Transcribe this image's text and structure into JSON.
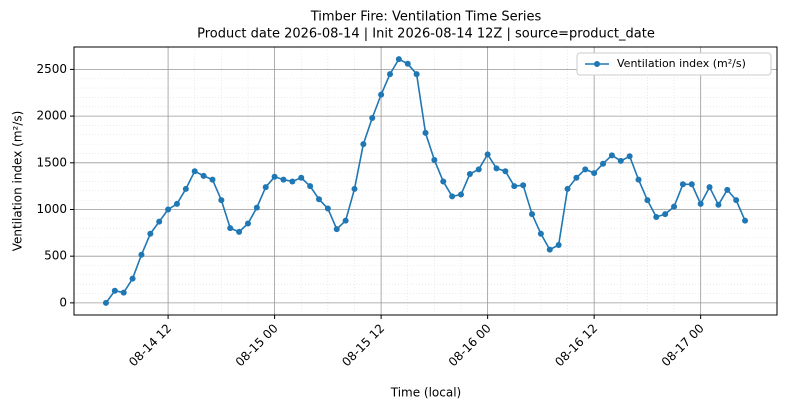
{
  "chart_data": {
    "type": "line",
    "title": "Timber Fire: Ventilation Time Series",
    "subtitle": "Product date 2026-08-14 | Init 2026-08-14 12Z | source=product_date",
    "x_label": "Time (local)",
    "y_label": "Ventilation index (m²/s)",
    "x": [
      "08-14 05",
      "08-14 06",
      "08-14 07",
      "08-14 08",
      "08-14 09",
      "08-14 10",
      "08-14 11",
      "08-14 12",
      "08-14 13",
      "08-14 14",
      "08-14 15",
      "08-14 16",
      "08-14 17",
      "08-14 18",
      "08-14 19",
      "08-14 20",
      "08-14 21",
      "08-14 22",
      "08-14 23",
      "08-15 00",
      "08-15 01",
      "08-15 02",
      "08-15 03",
      "08-15 04",
      "08-15 05",
      "08-15 06",
      "08-15 07",
      "08-15 08",
      "08-15 09",
      "08-15 10",
      "08-15 11",
      "08-15 12",
      "08-15 13",
      "08-15 14",
      "08-15 15",
      "08-15 16",
      "08-15 17",
      "08-15 18",
      "08-15 19",
      "08-15 20",
      "08-15 21",
      "08-15 22",
      "08-15 23",
      "08-16 00",
      "08-16 01",
      "08-16 02",
      "08-16 03",
      "08-16 04",
      "08-16 05",
      "08-16 06",
      "08-16 07",
      "08-16 08",
      "08-16 09",
      "08-16 10",
      "08-16 11",
      "08-16 12",
      "08-16 13",
      "08-16 14",
      "08-16 15",
      "08-16 16",
      "08-16 17",
      "08-16 18",
      "08-16 19",
      "08-16 20",
      "08-16 21",
      "08-16 22",
      "08-16 23",
      "08-17 00",
      "08-17 01",
      "08-17 02",
      "08-17 03",
      "08-17 04",
      "08-17 05"
    ],
    "series": [
      {
        "name": "Ventilation index (m²/s)",
        "color": "#1f77b4",
        "values": [
          0,
          130,
          110,
          260,
          515,
          740,
          870,
          1000,
          1060,
          1220,
          1410,
          1360,
          1320,
          1100,
          800,
          760,
          850,
          1020,
          1240,
          1350,
          1320,
          1300,
          1340,
          1250,
          1110,
          1010,
          790,
          880,
          1220,
          1700,
          1980,
          2230,
          2450,
          2610,
          2560,
          2450,
          1820,
          1530,
          1300,
          1140,
          1160,
          1380,
          1430,
          1590,
          1440,
          1410,
          1250,
          1260,
          950,
          740,
          570,
          620,
          1220,
          1340,
          1430,
          1390,
          1490,
          1580,
          1520,
          1570,
          1320,
          1100,
          920,
          950,
          1030,
          1270,
          1270,
          1060,
          1240,
          1050,
          1210,
          1100,
          880
        ]
      }
    ],
    "xlim": [
      "08-14 01:24",
      "08-17 08:36"
    ],
    "xticks": [
      "08-14 12",
      "08-15 00",
      "08-15 12",
      "08-16 00",
      "08-16 12",
      "08-17 00"
    ],
    "ylim": [
      -130,
      2740
    ],
    "yticks": [
      0,
      500,
      1000,
      1500,
      2000,
      2500
    ],
    "grid": true,
    "minor_grid": true,
    "legend": "upper right"
  }
}
